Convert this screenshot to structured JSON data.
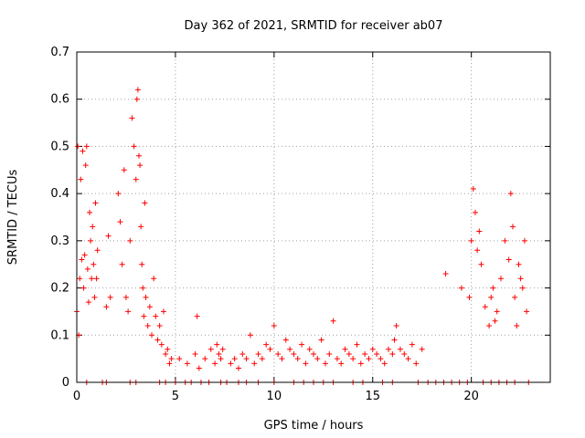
{
  "chart_data": {
    "type": "scatter",
    "title": "Day 362 of 2021, SRMTID for receiver ab07",
    "xlabel": "GPS time / hours",
    "ylabel": "SRMTID / TECUs",
    "xlim": [
      0,
      24
    ],
    "ylim": [
      0,
      0.7
    ],
    "xticks": [
      0,
      5,
      10,
      15,
      20
    ],
    "xtick_labels": [
      "0",
      "5",
      "10",
      "15",
      "20"
    ],
    "yticks": [
      0,
      0.1,
      0.2,
      0.3,
      0.4,
      0.5,
      0.6,
      0.7
    ],
    "ytick_labels": [
      "0",
      "0.1",
      "0.2",
      "0.3",
      "0.4",
      "0.5",
      "0.6",
      "0.7"
    ],
    "grid": true,
    "marker": "+",
    "color": "#ff0000",
    "series": [
      {
        "name": "SRMTID",
        "x": [
          0.0,
          0.05,
          0.1,
          0.15,
          0.2,
          0.25,
          0.3,
          0.35,
          0.4,
          0.45,
          0.5,
          0.55,
          0.6,
          0.65,
          0.7,
          0.75,
          0.8,
          0.85,
          0.9,
          0.95,
          1.0,
          1.05,
          1.5,
          1.6,
          1.7,
          2.1,
          2.2,
          2.3,
          2.4,
          2.5,
          2.6,
          2.7,
          2.8,
          2.9,
          3.0,
          3.05,
          3.1,
          3.15,
          3.2,
          3.25,
          3.3,
          3.35,
          3.4,
          3.45,
          3.5,
          3.6,
          3.7,
          3.8,
          3.9,
          4.0,
          4.1,
          4.2,
          4.3,
          4.4,
          4.5,
          4.6,
          4.7,
          4.8,
          5.2,
          5.6,
          6.0,
          6.1,
          6.2,
          6.5,
          6.8,
          7.0,
          7.1,
          7.2,
          7.3,
          7.4,
          7.8,
          8.0,
          8.2,
          8.4,
          8.6,
          8.8,
          9.0,
          9.2,
          9.4,
          9.6,
          9.8,
          10.0,
          10.2,
          10.4,
          10.6,
          10.8,
          11.0,
          11.2,
          11.4,
          11.6,
          11.8,
          12.0,
          12.2,
          12.4,
          12.6,
          12.8,
          13.0,
          13.2,
          13.4,
          13.6,
          13.8,
          14.0,
          14.2,
          14.4,
          14.6,
          14.8,
          15.0,
          15.2,
          15.4,
          15.6,
          15.8,
          16.0,
          16.1,
          16.2,
          16.4,
          16.6,
          16.8,
          17.0,
          17.2,
          17.5,
          18.7,
          19.5,
          19.9,
          20.0,
          20.1,
          20.2,
          20.3,
          20.4,
          20.5,
          20.7,
          20.9,
          21.0,
          21.1,
          21.2,
          21.3,
          21.5,
          21.7,
          21.9,
          22.0,
          22.1,
          22.2,
          22.3,
          22.4,
          22.5,
          22.6,
          22.7,
          22.8,
          0.5,
          1.3,
          1.5,
          2.7,
          3.0,
          4.2,
          4.5,
          5.0,
          5.5,
          5.8,
          6.3,
          6.7,
          7.3,
          7.6,
          8.2,
          8.6,
          9.2,
          10.0,
          11.0,
          11.5,
          12.0,
          12.5,
          13.0,
          14.0,
          14.5,
          15.5,
          16.0,
          17.3,
          17.8,
          18.2,
          18.6,
          19.0,
          19.4,
          19.8,
          20.6,
          21.0,
          21.4,
          21.8,
          22.2,
          22.9
        ],
        "y": [
          0.15,
          0.5,
          0.1,
          0.22,
          0.43,
          0.26,
          0.49,
          0.2,
          0.27,
          0.46,
          0.5,
          0.24,
          0.17,
          0.36,
          0.3,
          0.22,
          0.33,
          0.25,
          0.18,
          0.38,
          0.22,
          0.28,
          0.16,
          0.31,
          0.18,
          0.4,
          0.34,
          0.25,
          0.45,
          0.18,
          0.15,
          0.3,
          0.56,
          0.5,
          0.43,
          0.6,
          0.62,
          0.48,
          0.46,
          0.33,
          0.25,
          0.2,
          0.14,
          0.38,
          0.18,
          0.12,
          0.16,
          0.1,
          0.22,
          0.14,
          0.09,
          0.12,
          0.08,
          0.15,
          0.06,
          0.07,
          0.04,
          0.05,
          0.05,
          0.04,
          0.06,
          0.14,
          0.03,
          0.05,
          0.07,
          0.04,
          0.08,
          0.06,
          0.05,
          0.07,
          0.04,
          0.05,
          0.03,
          0.06,
          0.05,
          0.1,
          0.04,
          0.06,
          0.05,
          0.08,
          0.07,
          0.12,
          0.06,
          0.05,
          0.09,
          0.07,
          0.06,
          0.05,
          0.08,
          0.04,
          0.07,
          0.06,
          0.05,
          0.09,
          0.04,
          0.06,
          0.13,
          0.05,
          0.04,
          0.07,
          0.06,
          0.05,
          0.08,
          0.04,
          0.06,
          0.05,
          0.07,
          0.06,
          0.05,
          0.04,
          0.07,
          0.06,
          0.09,
          0.12,
          0.07,
          0.06,
          0.05,
          0.08,
          0.04,
          0.07,
          0.23,
          0.2,
          0.18,
          0.3,
          0.41,
          0.36,
          0.28,
          0.32,
          0.25,
          0.16,
          0.12,
          0.18,
          0.2,
          0.13,
          0.15,
          0.22,
          0.3,
          0.26,
          0.4,
          0.33,
          0.18,
          0.12,
          0.25,
          0.22,
          0.2,
          0.3,
          0.15,
          0,
          0,
          0,
          0,
          0,
          0,
          0,
          0,
          0,
          0,
          0,
          0,
          0,
          0,
          0,
          0,
          0,
          0,
          0,
          0,
          0,
          0,
          0,
          0,
          0,
          0,
          0,
          0,
          0,
          0,
          0,
          0,
          0,
          0,
          0,
          0,
          0,
          0,
          0,
          0
        ]
      }
    ]
  }
}
